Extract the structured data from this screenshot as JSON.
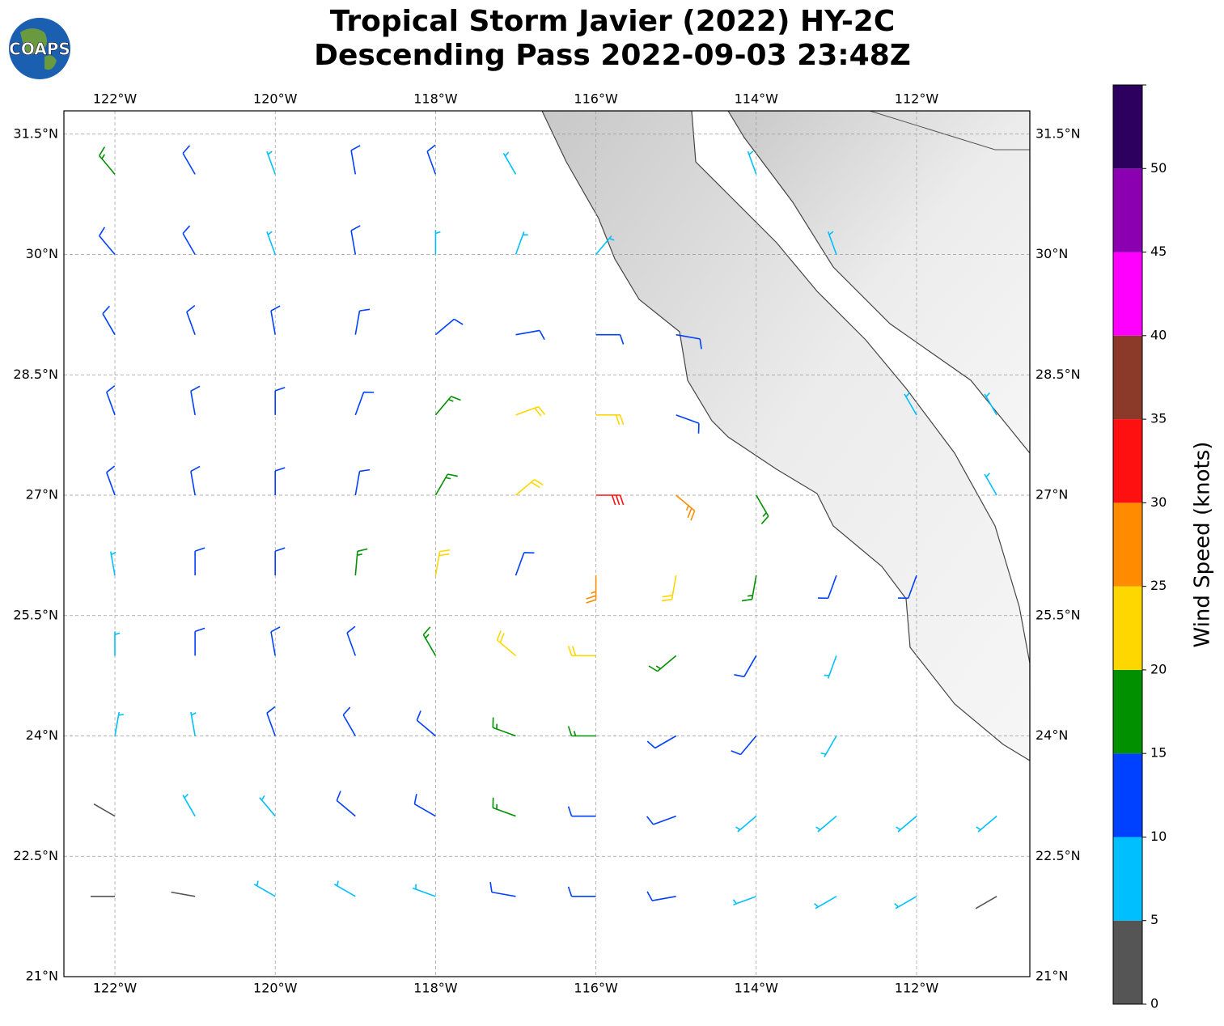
{
  "chart_data": {
    "type": "wind-barbs",
    "title": "Tropical Storm Javier (2022) HY-2C",
    "subtitle": "Descending Pass 2022-09-03 23:48Z",
    "logo": "COAPS",
    "xlim": [
      -122.636,
      -110.587
    ],
    "ylim": [
      21,
      31.79
    ],
    "grid": true,
    "xticks": [
      {
        "value": -122,
        "label": "122°W"
      },
      {
        "value": -120,
        "label": "120°W"
      },
      {
        "value": -118,
        "label": "118°W"
      },
      {
        "value": -116,
        "label": "116°W"
      },
      {
        "value": -114,
        "label": "114°W"
      },
      {
        "value": -112,
        "label": "112°W"
      }
    ],
    "yticks": [
      {
        "value": 21,
        "label": "21°N"
      },
      {
        "value": 22.5,
        "label": "22.5°N"
      },
      {
        "value": 24,
        "label": "24°N"
      },
      {
        "value": 25.5,
        "label": "25.5°N"
      },
      {
        "value": 27,
        "label": "27°N"
      },
      {
        "value": 28.5,
        "label": "28.5°N"
      },
      {
        "value": 30,
        "label": "30°N"
      },
      {
        "value": 31.5,
        "label": "31.5°N"
      }
    ],
    "lons": [
      -122,
      -121,
      -120,
      -119,
      -118,
      -117,
      -116,
      -115,
      -114,
      -113,
      -112,
      -111
    ],
    "lats": [
      31,
      30,
      29,
      28,
      27,
      26,
      25,
      24,
      23,
      22
    ],
    "speed": [
      [
        17,
        12,
        8,
        12,
        12,
        8,
        null,
        null,
        8,
        null,
        null,
        null
      ],
      [
        12,
        12,
        8,
        12,
        8,
        8,
        8,
        null,
        null,
        8,
        null,
        null
      ],
      [
        12,
        12,
        12,
        12,
        12,
        12,
        12,
        12,
        null,
        null,
        null,
        null
      ],
      [
        12,
        12,
        12,
        12,
        17,
        22,
        22,
        12,
        null,
        null,
        8,
        8
      ],
      [
        12,
        12,
        12,
        12,
        17,
        22,
        32,
        27,
        17,
        null,
        null,
        8
      ],
      [
        8,
        12,
        12,
        17,
        22,
        12,
        27,
        22,
        17,
        12,
        12,
        null
      ],
      [
        8,
        12,
        12,
        12,
        17,
        22,
        22,
        17,
        12,
        8,
        null,
        null
      ],
      [
        8,
        8,
        12,
        12,
        12,
        17,
        17,
        12,
        12,
        8,
        null,
        null
      ],
      [
        3,
        8,
        8,
        12,
        12,
        17,
        12,
        12,
        8,
        8,
        8,
        8
      ],
      [
        3,
        3,
        8,
        8,
        8,
        12,
        12,
        12,
        8,
        8,
        8,
        3
      ]
    ],
    "direction": [
      [
        320,
        330,
        340,
        350,
        340,
        330,
        null,
        null,
        340,
        null,
        null,
        null
      ],
      [
        320,
        330,
        340,
        350,
        0,
        20,
        40,
        null,
        null,
        340,
        null,
        null
      ],
      [
        330,
        340,
        350,
        10,
        50,
        80,
        90,
        100,
        null,
        null,
        null,
        null
      ],
      [
        340,
        350,
        0,
        20,
        40,
        70,
        90,
        110,
        null,
        null,
        330,
        330
      ],
      [
        340,
        350,
        0,
        10,
        30,
        50,
        90,
        130,
        150,
        null,
        null,
        330
      ],
      [
        350,
        0,
        0,
        5,
        10,
        20,
        180,
        190,
        190,
        200,
        200,
        null
      ],
      [
        0,
        0,
        350,
        340,
        330,
        310,
        270,
        230,
        210,
        200,
        null,
        null
      ],
      [
        10,
        350,
        340,
        330,
        310,
        290,
        270,
        240,
        220,
        210,
        null,
        null
      ],
      [
        300,
        330,
        320,
        310,
        300,
        290,
        270,
        250,
        230,
        230,
        230,
        230
      ],
      [
        270,
        280,
        300,
        300,
        290,
        280,
        270,
        260,
        250,
        240,
        240,
        240
      ]
    ],
    "colorbar": {
      "label": "Wind Speed (knots)",
      "lim": [
        0,
        55
      ],
      "ticks": [
        0,
        5,
        10,
        15,
        20,
        25,
        30,
        35,
        40,
        45,
        50
      ],
      "colors": [
        "#555555",
        "#00bfff",
        "#0040ff",
        "#009000",
        "#ffd700",
        "#ff8c00",
        "#ff1010",
        "#8b3a2a",
        "#ff00ff",
        "#8b00b0",
        "#2d0060"
      ]
    }
  }
}
